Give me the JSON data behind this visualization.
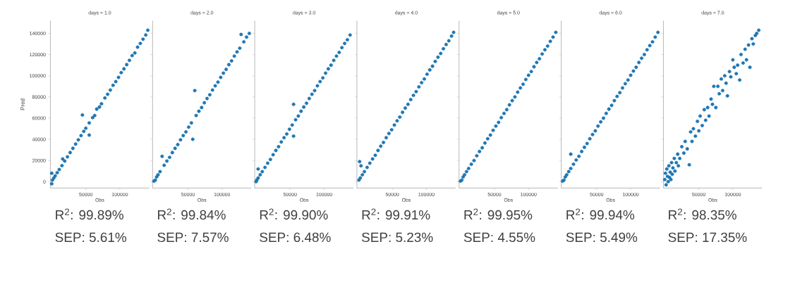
{
  "chart_data": [
    {
      "type": "scatter",
      "title": "days = 1.0",
      "xlabel": "Obs",
      "ylabel": "Pred",
      "color": "#1f77b4",
      "xlim": [
        -2000,
        143000
      ],
      "ylim": [
        -6000,
        152000
      ],
      "xticks": [
        50000,
        100000
      ],
      "yticks": [
        0,
        20000,
        40000,
        60000,
        80000,
        100000,
        120000,
        140000
      ],
      "annotations": [
        "R$^{2}$: 99.89%",
        "SEP: 5.61%"
      ],
      "x": [
        0,
        0,
        1000,
        2000,
        3000,
        5000,
        8000,
        11000,
        15000,
        16000,
        19000,
        23000,
        27000,
        31000,
        35000,
        39000,
        43000,
        45000,
        47000,
        50000,
        55000,
        55000,
        60000,
        63000,
        66000,
        70000,
        73000,
        78000,
        82000,
        86000,
        90000,
        94000,
        98000,
        102000,
        106000,
        110000,
        114000,
        118000,
        122000,
        126000,
        130000,
        134000,
        138000,
        141000
      ],
      "values": [
        -2000,
        8000,
        1500,
        null,
        3500,
        5500,
        8500,
        11500,
        15200,
        21500,
        19500,
        23500,
        27500,
        31500,
        35500,
        39500,
        43500,
        63000,
        47500,
        50500,
        44000,
        55500,
        60500,
        62500,
        68500,
        70500,
        73500,
        79000,
        82500,
        86500,
        91000,
        94500,
        98500,
        103000,
        106500,
        110500,
        114500,
        119000,
        121500,
        127000,
        130500,
        134500,
        138500,
        143000
      ]
    },
    {
      "type": "scatter",
      "title": "days = 2.0",
      "xlabel": "Obs",
      "color": "#1f77b4",
      "tick_labels": "x",
      "xlim": [
        -2000,
        143000
      ],
      "ylim": [
        -6000,
        152000
      ],
      "xticks": [
        50000,
        100000
      ],
      "yticks": [
        0,
        20000,
        40000,
        60000,
        80000,
        100000,
        120000,
        140000
      ],
      "annotations": [
        "R$^{2}$: 99.84%",
        "SEP: 7.57%"
      ],
      "x": [
        0,
        1000,
        2000,
        4000,
        6000,
        9000,
        12000,
        15000,
        19000,
        23000,
        27000,
        31000,
        35000,
        39000,
        43000,
        47000,
        51000,
        55000,
        57000,
        60000,
        62000,
        66000,
        70000,
        74000,
        78000,
        82000,
        86000,
        90000,
        94000,
        98000,
        102000,
        106000,
        110000,
        114000,
        118000,
        122000,
        126000,
        128000,
        132000,
        136000,
        140000
      ],
      "values": [
        500,
        null,
        1500,
        4500,
        6500,
        9500,
        24000,
        15500,
        19500,
        23000,
        27500,
        31500,
        35000,
        39500,
        43500,
        47000,
        51500,
        55500,
        40000,
        86000,
        62500,
        66500,
        70000,
        74500,
        78500,
        82000,
        86500,
        90500,
        94000,
        98500,
        102500,
        106000,
        110500,
        114000,
        118500,
        122500,
        126000,
        139000,
        132000,
        136500,
        140000
      ]
    },
    {
      "type": "scatter",
      "title": "days = 3.0",
      "xlabel": "Obs",
      "color": "#1f77b4",
      "tick_labels": "x",
      "xlim": [
        -2000,
        143000
      ],
      "ylim": [
        -6000,
        152000
      ],
      "xticks": [
        50000,
        100000
      ],
      "yticks": [
        0,
        20000,
        40000,
        60000,
        80000,
        100000,
        120000,
        140000
      ],
      "annotations": [
        "R$^{2}$: 99.90%",
        "SEP: 6.48%"
      ],
      "x": [
        0,
        1000,
        3000,
        3000,
        6000,
        9000,
        13000,
        17000,
        21000,
        25000,
        29000,
        33000,
        37000,
        41000,
        45000,
        49000,
        53000,
        55000,
        55000,
        58000,
        62000,
        66000,
        70000,
        74000,
        78000,
        82000,
        86000,
        90000,
        94000,
        98000,
        102000,
        106000,
        110000,
        114000,
        118000,
        122000,
        126000,
        130000,
        134000,
        138000
      ],
      "values": [
        0,
        1500,
        3500,
        12000,
        6500,
        9500,
        13500,
        17500,
        21000,
        25500,
        29500,
        33000,
        37500,
        41500,
        45000,
        49500,
        53500,
        73000,
        43000,
        58500,
        62000,
        66500,
        70500,
        74000,
        78500,
        82500,
        86000,
        90500,
        94500,
        98000,
        102500,
        106500,
        110000,
        114500,
        118500,
        122000,
        126500,
        130500,
        134000,
        138500
      ]
    },
    {
      "type": "scatter",
      "title": "days = 4.0",
      "xlabel": "Obs",
      "color": "#1f77b4",
      "tick_labels": "x",
      "xlim": [
        -2000,
        143000
      ],
      "ylim": [
        -6000,
        152000
      ],
      "xticks": [
        50000,
        100000
      ],
      "yticks": [
        0,
        20000,
        40000,
        60000,
        80000,
        100000,
        120000,
        140000
      ],
      "annotations": [
        "R$^{2}$: 99.91%",
        "SEP: 5.23%"
      ],
      "x": [
        1000,
        2000,
        3000,
        4000,
        6000,
        9000,
        13000,
        17000,
        21000,
        25000,
        29000,
        33000,
        37000,
        41000,
        45000,
        49000,
        53000,
        57000,
        61000,
        65000,
        69000,
        73000,
        77000,
        81000,
        85000,
        89000,
        93000,
        97000,
        101000,
        105000,
        109000,
        113000,
        117000,
        121000,
        125000,
        129000,
        133000,
        137000,
        140000
      ],
      "values": [
        1500,
        19000,
        3500,
        15000,
        6500,
        9500,
        13500,
        17500,
        21500,
        25000,
        29500,
        33500,
        37000,
        41500,
        45500,
        49000,
        53500,
        57500,
        61000,
        65500,
        69500,
        73000,
        77500,
        81500,
        85000,
        89500,
        93500,
        97000,
        101500,
        105500,
        109000,
        113500,
        117500,
        121000,
        125500,
        129500,
        133000,
        137500,
        141000
      ]
    },
    {
      "type": "scatter",
      "title": "days = 5.0",
      "xlabel": "Obs",
      "color": "#1f77b4",
      "tick_labels": "x",
      "xlim": [
        -2000,
        143000
      ],
      "ylim": [
        -6000,
        152000
      ],
      "xticks": [
        50000,
        100000
      ],
      "yticks": [
        0,
        20000,
        40000,
        60000,
        80000,
        100000,
        120000,
        140000
      ],
      "annotations": [
        "R$^{2}$: 99.95%",
        "SEP: 4.55%"
      ],
      "x": [
        0,
        1000,
        2000,
        4000,
        6000,
        9000,
        12000,
        16000,
        20000,
        24000,
        28000,
        32000,
        36000,
        40000,
        44000,
        48000,
        52000,
        56000,
        60000,
        64000,
        68000,
        72000,
        76000,
        80000,
        84000,
        88000,
        92000,
        96000,
        100000,
        104000,
        108000,
        112000,
        116000,
        120000,
        124000,
        128000,
        132000,
        136000,
        140000
      ],
      "values": [
        500,
        null,
        1500,
        4500,
        6500,
        9500,
        12500,
        16500,
        20000,
        24500,
        28500,
        32000,
        36500,
        40500,
        44000,
        48500,
        52500,
        56000,
        60500,
        64500,
        68000,
        72500,
        76500,
        80000,
        84500,
        88500,
        92000,
        96500,
        100500,
        104000,
        108500,
        112500,
        116000,
        120500,
        124500,
        128000,
        132500,
        136500,
        141000
      ]
    },
    {
      "type": "scatter",
      "title": "days = 6.0",
      "xlabel": "Obs",
      "color": "#1f77b4",
      "tick_labels": "x",
      "xlim": [
        -2000,
        143000
      ],
      "ylim": [
        -6000,
        152000
      ],
      "xticks": [
        50000,
        100000
      ],
      "yticks": [
        0,
        20000,
        40000,
        60000,
        80000,
        100000,
        120000,
        140000
      ],
      "annotations": [
        "R$^{2}$: 99.94%",
        "SEP: 5.49%"
      ],
      "x": [
        0,
        1000,
        2000,
        4000,
        6000,
        9000,
        12000,
        12000,
        16000,
        20000,
        24000,
        28000,
        32000,
        36000,
        40000,
        44000,
        48000,
        52000,
        56000,
        60000,
        64000,
        68000,
        72000,
        76000,
        80000,
        84000,
        88000,
        92000,
        96000,
        100000,
        104000,
        108000,
        112000,
        116000,
        120000,
        124000,
        128000,
        132000,
        136000,
        140000
      ],
      "values": [
        500,
        null,
        1500,
        4500,
        6500,
        9500,
        12500,
        26000,
        16500,
        20500,
        24000,
        28500,
        32500,
        36000,
        40500,
        44500,
        48000,
        52500,
        56500,
        60000,
        64500,
        68500,
        72000,
        76500,
        80500,
        84000,
        88500,
        92500,
        96000,
        100500,
        104500,
        108000,
        112500,
        116500,
        120000,
        124500,
        128500,
        132000,
        136500,
        141000
      ]
    },
    {
      "type": "scatter",
      "title": "days = 7.0",
      "xlabel": "Obs",
      "color": "#1f77b4",
      "tick_labels": "x",
      "xlim": [
        -2000,
        143000
      ],
      "ylim": [
        -6000,
        152000
      ],
      "xticks": [
        50000,
        100000
      ],
      "yticks": [
        0,
        20000,
        40000,
        60000,
        80000,
        100000,
        120000,
        140000
      ],
      "annotations": [
        "R$^{2}$: 98.35%",
        "SEP: 17.35%"
      ],
      "x": [
        0,
        1000,
        2000,
        3000,
        4000,
        5000,
        6000,
        7000,
        8000,
        9000,
        10000,
        11000,
        12000,
        14000,
        15000,
        17000,
        19000,
        20000,
        22000,
        25000,
        28000,
        30000,
        33000,
        36000,
        38000,
        40000,
        42000,
        45000,
        48000,
        50000,
        52000,
        55000,
        58000,
        60000,
        63000,
        65000,
        68000,
        70000,
        72000,
        75000,
        78000,
        80000,
        83000,
        85000,
        88000,
        90000,
        92000,
        95000,
        97000,
        100000,
        102000,
        105000,
        107000,
        110000,
        112000,
        115000,
        118000,
        120000,
        123000,
        125000,
        128000,
        130000,
        133000,
        135000,
        138000
      ],
      "values": [
        2000,
        8000,
        -3000,
        12000,
        5000,
        0,
        15000,
        4000,
        9000,
        2000,
        18000,
        7000,
        13000,
        22000,
        10000,
        18000,
        26000,
        15000,
        22000,
        33000,
        27000,
        38000,
        31000,
        16000,
        47000,
        38000,
        50000,
        43000,
        57000,
        48000,
        62000,
        53000,
        68000,
        58000,
        70000,
        62000,
        78000,
        73000,
        90000,
        70000,
        90000,
        83000,
        97000,
        86000,
        100000,
        93000,
        81000,
        104000,
        99000,
        115000,
        108000,
        102000,
        110000,
        96000,
        120000,
        112000,
        125000,
        115000,
        129000,
        108000,
        135000,
        130000,
        138000,
        140000,
        143000
      ]
    }
  ]
}
